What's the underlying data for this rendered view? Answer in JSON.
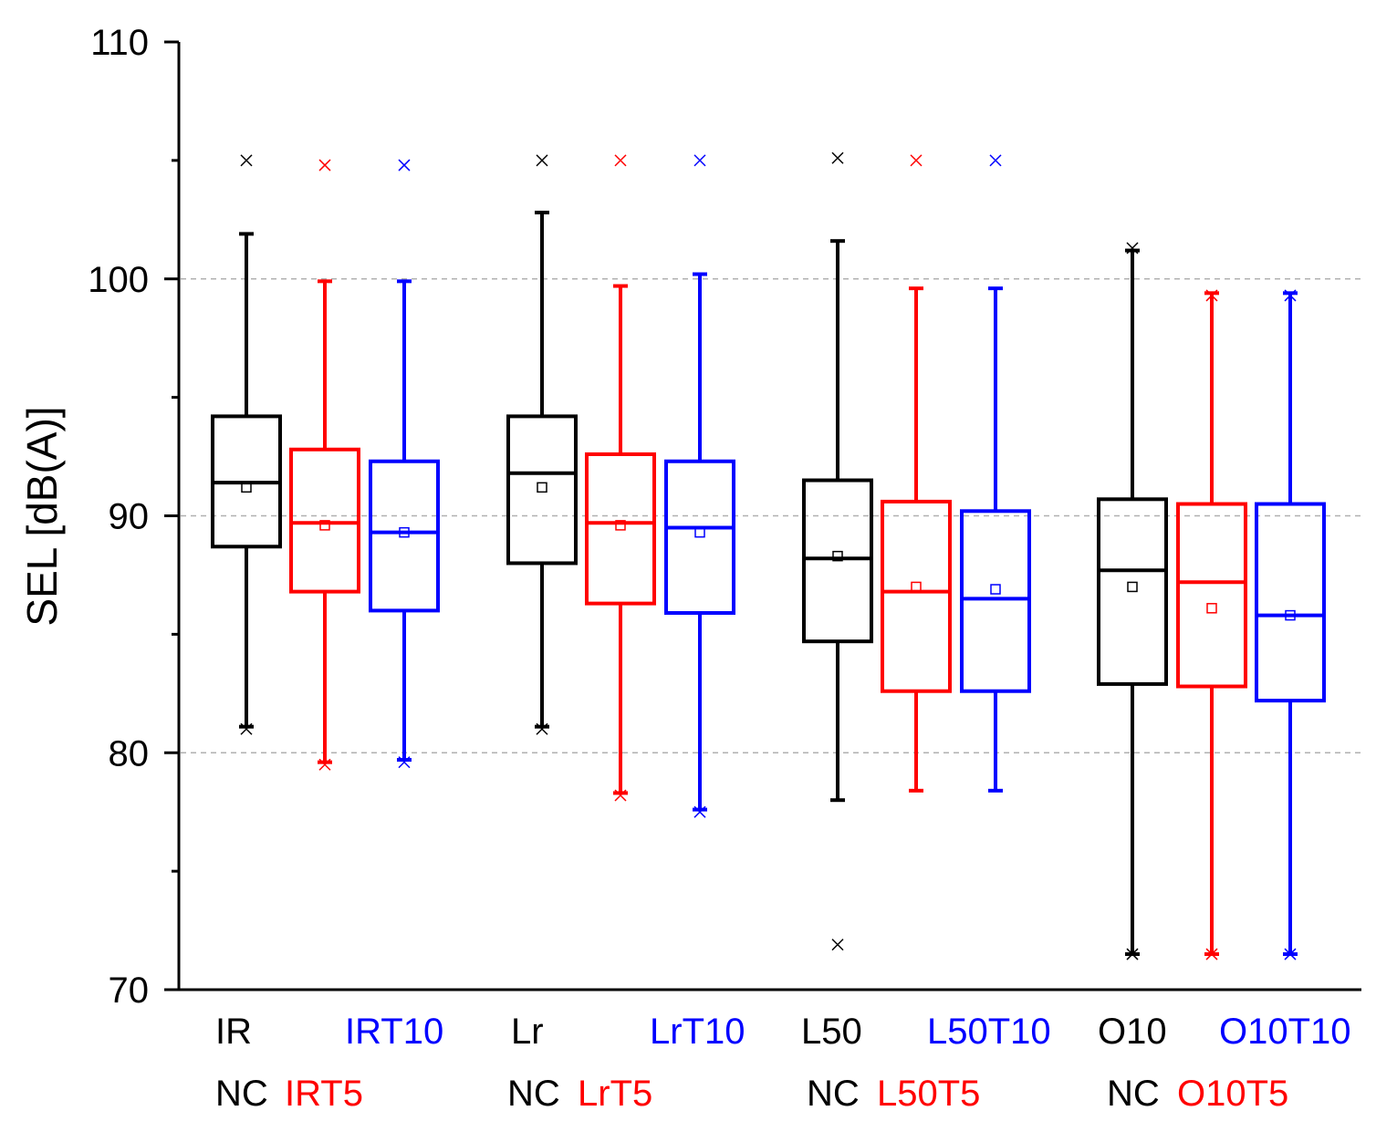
{
  "chart_data": {
    "type": "box",
    "title": "",
    "xlabel": "",
    "ylabel": "SEL [dB(A)]",
    "ylim": [
      70,
      110
    ],
    "yticks": [
      "70",
      "80",
      "90",
      "100",
      "110"
    ],
    "grid": {
      "y_dashed_at": [
        80,
        90,
        100
      ]
    },
    "colors": {
      "black": "#000000",
      "red": "#ff0000",
      "blue": "#0000ff"
    },
    "groups": [
      {
        "label_top_left": "IR",
        "label_top_right": "IRT10",
        "label_bottom_black": "NC",
        "label_bottom_red": "IRT5",
        "boxes": [
          {
            "color": "black",
            "q1": 88.7,
            "median": 91.4,
            "q3": 94.2,
            "whisker_low": 81.1,
            "whisker_high": 101.9,
            "mean": 91.2,
            "outliers": [
              105.0,
              81.0
            ]
          },
          {
            "color": "red",
            "q1": 86.8,
            "median": 89.7,
            "q3": 92.8,
            "whisker_low": 79.6,
            "whisker_high": 99.9,
            "mean": 89.6,
            "outliers": [
              104.8,
              79.5
            ]
          },
          {
            "color": "blue",
            "q1": 86.0,
            "median": 89.3,
            "q3": 92.3,
            "whisker_low": 79.7,
            "whisker_high": 99.9,
            "mean": 89.3,
            "outliers": [
              104.8,
              79.6
            ]
          }
        ]
      },
      {
        "label_top_left": "Lr",
        "label_top_right": "LrT10",
        "label_bottom_black": "NC",
        "label_bottom_red": "LrT5",
        "boxes": [
          {
            "color": "black",
            "q1": 88.0,
            "median": 91.8,
            "q3": 94.2,
            "whisker_low": 81.1,
            "whisker_high": 102.8,
            "mean": 91.2,
            "outliers": [
              105.0,
              81.0
            ]
          },
          {
            "color": "red",
            "q1": 86.3,
            "median": 89.7,
            "q3": 92.6,
            "whisker_low": 78.3,
            "whisker_high": 99.7,
            "mean": 89.6,
            "outliers": [
              105.0,
              78.2
            ]
          },
          {
            "color": "blue",
            "q1": 85.9,
            "median": 89.5,
            "q3": 92.3,
            "whisker_low": 77.6,
            "whisker_high": 100.2,
            "mean": 89.3,
            "outliers": [
              105.0,
              77.5
            ]
          }
        ]
      },
      {
        "label_top_left": "L50",
        "label_top_right": "L50T10",
        "label_bottom_black": "NC",
        "label_bottom_red": "L50T5",
        "boxes": [
          {
            "color": "black",
            "q1": 84.7,
            "median": 88.2,
            "q3": 91.5,
            "whisker_low": 78.0,
            "whisker_high": 101.6,
            "mean": 88.3,
            "outliers": [
              105.1,
              71.9
            ]
          },
          {
            "color": "red",
            "q1": 82.6,
            "median": 86.8,
            "q3": 90.6,
            "whisker_low": 78.4,
            "whisker_high": 99.6,
            "mean": 87.0,
            "outliers": [
              105.0
            ]
          },
          {
            "color": "blue",
            "q1": 82.6,
            "median": 86.5,
            "q3": 90.2,
            "whisker_low": 78.4,
            "whisker_high": 99.6,
            "mean": 86.9,
            "outliers": [
              105.0
            ]
          }
        ]
      },
      {
        "label_top_left": "O10",
        "label_top_right": "O10T10",
        "label_bottom_black": "NC",
        "label_bottom_red": "O10T5",
        "boxes": [
          {
            "color": "black",
            "q1": 82.9,
            "median": 87.7,
            "q3": 90.7,
            "whisker_low": 71.5,
            "whisker_high": 101.2,
            "mean": 87.0,
            "outliers": [
              101.3,
              71.5
            ]
          },
          {
            "color": "red",
            "q1": 82.8,
            "median": 87.2,
            "q3": 90.5,
            "whisker_low": 71.5,
            "whisker_high": 99.4,
            "mean": 86.1,
            "outliers": [
              99.3,
              71.5
            ]
          },
          {
            "color": "blue",
            "q1": 82.2,
            "median": 85.8,
            "q3": 90.5,
            "whisker_low": 71.5,
            "whisker_high": 99.4,
            "mean": 85.8,
            "outliers": [
              99.3,
              71.5
            ]
          }
        ]
      }
    ]
  }
}
